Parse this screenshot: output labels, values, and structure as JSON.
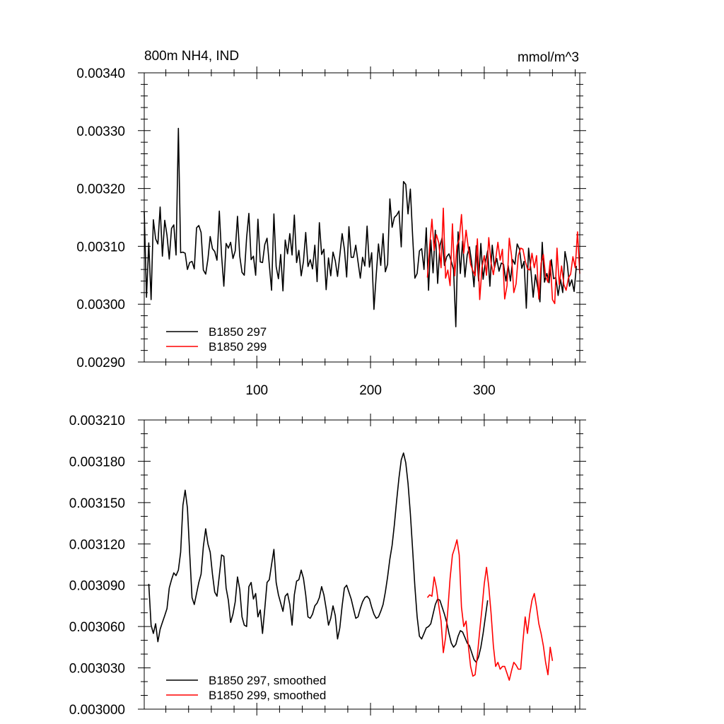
{
  "chart_data": [
    {
      "type": "line",
      "title_left": "800m NH4, IND",
      "title_right": "mmol/m^3",
      "xlim": [
        1,
        384
      ],
      "ylim": [
        0.0029,
        0.0034
      ],
      "x_ticks": [
        100,
        200,
        300
      ],
      "x_tick_labels": [
        "100",
        "200",
        "300"
      ],
      "y_ticks": [
        0.0029,
        0.003,
        0.0031,
        0.0032,
        0.0033,
        0.0034
      ],
      "y_tick_labels": [
        "0.00290",
        "0.00300",
        "0.00310",
        "0.00320",
        "0.00330",
        "0.00340"
      ],
      "legend_position": "bottom-left",
      "series": [
        {
          "name": "B1850 297",
          "color": "#000000",
          "x_start": 1,
          "x_step": 2,
          "values": [
            0.00316,
            0.003012,
            0.003106,
            0.003008,
            0.003146,
            0.003113,
            0.003104,
            0.003168,
            0.003083,
            0.003145,
            0.003119,
            0.003078,
            0.003131,
            0.003137,
            0.003085,
            0.003304,
            0.003089,
            0.00309,
            0.003088,
            0.00306,
            0.003072,
            0.003074,
            0.003061,
            0.003132,
            0.003136,
            0.003124,
            0.003059,
            0.003052,
            0.003078,
            0.003117,
            0.003096,
            0.003091,
            0.003076,
            0.003161,
            0.003084,
            0.003031,
            0.003105,
            0.003097,
            0.003107,
            0.003079,
            0.003092,
            0.003152,
            0.003083,
            0.003055,
            0.00305,
            0.003115,
            0.003157,
            0.003077,
            0.003083,
            0.00305,
            0.003147,
            0.003073,
            0.003072,
            0.003103,
            0.003114,
            0.003068,
            0.003024,
            0.003156,
            0.003065,
            0.003044,
            0.003086,
            0.003023,
            0.003111,
            0.003087,
            0.003122,
            0.003085,
            0.003154,
            0.003072,
            0.003093,
            0.003049,
            0.003074,
            0.003124,
            0.003065,
            0.003077,
            0.003061,
            0.003102,
            0.003039,
            0.003141,
            0.003086,
            0.003095,
            0.003025,
            0.00308,
            0.003049,
            0.00309,
            0.003075,
            0.003048,
            0.003084,
            0.003122,
            0.003095,
            0.003047,
            0.003134,
            0.003081,
            0.003081,
            0.003102,
            0.003073,
            0.003045,
            0.003081,
            0.003066,
            0.003135,
            0.003064,
            0.003089,
            0.002991,
            0.00305,
            0.003104,
            0.003067,
            0.003122,
            0.003056,
            0.003069,
            0.003182,
            0.003133,
            0.00315,
            0.003154,
            0.003161,
            0.003099,
            0.003212,
            0.003207,
            0.003156,
            0.003199,
            0.003118,
            0.003045,
            0.003053,
            0.003092,
            0.003096,
            0.00306,
            0.003132,
            0.003024,
            0.003111,
            0.003054,
            0.003128,
            0.003036,
            0.003101,
            0.003115,
            0.003067,
            0.003082,
            0.003087,
            0.003074,
            0.00306,
            0.002961,
            0.003125,
            0.003053,
            0.003109,
            0.003047,
            0.003085,
            0.003099,
            0.003071,
            0.00303,
            0.003101,
            0.00304,
            0.003105,
            0.003043,
            0.003073,
            0.003092,
            0.003031,
            0.003102,
            0.003063,
            0.003079,
            0.003057,
            0.003071,
            0.003069,
            0.00304,
            0.003067,
            0.00304,
            0.003077,
            0.003069,
            0.003104,
            0.003095,
            0.003062,
            0.003074,
            0.002993,
            0.003097,
            0.00306,
            0.003012,
            0.003051,
            0.003029,
            0.003004,
            0.003107,
            0.003038,
            0.003053,
            0.003037,
            0.003077,
            0.003044,
            0.003046,
            0.003015,
            0.003043,
            0.00302,
            0.003091,
            0.00307,
            0.003031,
            0.003042,
            0.003022,
            0.003066
          ]
        },
        {
          "name": "B1850 299",
          "color": "#ff0000",
          "x_start": 250,
          "x_step": 2,
          "values": [
            0.003046,
            0.003101,
            0.003147,
            0.003093,
            0.00312,
            0.003106,
            0.003063,
            0.003166,
            0.003045,
            0.003059,
            0.003032,
            0.003139,
            0.003049,
            0.003101,
            0.003112,
            0.003155,
            0.003088,
            0.003128,
            0.003097,
            0.003069,
            0.003058,
            0.003049,
            0.003113,
            0.003008,
            0.003063,
            0.003084,
            0.00305,
            0.003115,
            0.003072,
            0.003051,
            0.003077,
            0.003107,
            0.003076,
            0.003095,
            0.003009,
            0.003032,
            0.003114,
            0.003084,
            0.00302,
            0.003035,
            0.003084,
            0.003097,
            0.003095,
            0.003075,
            0.003061,
            0.003059,
            0.003088,
            0.003063,
            0.003084,
            0.003009,
            0.003071,
            0.003086,
            0.003048,
            0.003038,
            0.003075,
            0.003008,
            0.003001,
            0.003097,
            0.003034,
            0.003066,
            0.003034,
            0.003024,
            0.003045,
            0.003052,
            0.003082,
            0.003063,
            0.003125,
            0.003053,
            0.003055
          ]
        }
      ]
    },
    {
      "type": "line",
      "xlim": [
        1,
        384
      ],
      "ylim": [
        0.003,
        0.00321
      ],
      "y_ticks": [
        0.003,
        0.00303,
        0.00306,
        0.00309,
        0.00312,
        0.00315,
        0.00318,
        0.00321
      ],
      "y_tick_labels": [
        "0.003000",
        "0.003030",
        "0.003060",
        "0.003090",
        "0.003120",
        "0.003150",
        "0.003180",
        "0.003210"
      ],
      "legend_position": "bottom-left",
      "series": [
        {
          "name": "B1850 297, smoothed",
          "color": "#000000",
          "x_start": 5,
          "x_step": 2,
          "values": [
            0.003091,
            0.003061,
            0.003055,
            0.003062,
            0.003049,
            0.003058,
            0.003063,
            0.003068,
            0.003073,
            0.003088,
            0.003094,
            0.003099,
            0.003097,
            0.003101,
            0.003114,
            0.003148,
            0.003159,
            0.003146,
            0.003113,
            0.003081,
            0.003076,
            0.003084,
            0.003092,
            0.003098,
            0.003118,
            0.003131,
            0.00312,
            0.003114,
            0.003098,
            0.003085,
            0.003082,
            0.003097,
            0.003112,
            0.003111,
            0.003088,
            0.003079,
            0.003063,
            0.003069,
            0.003078,
            0.003096,
            0.003087,
            0.003067,
            0.003061,
            0.00306,
            0.003089,
            0.003092,
            0.00308,
            0.003084,
            0.003067,
            0.003072,
            0.003055,
            0.003073,
            0.003092,
            0.003094,
            0.003105,
            0.003116,
            0.003092,
            0.003083,
            0.003077,
            0.003071,
            0.003082,
            0.003084,
            0.003076,
            0.003061,
            0.003083,
            0.003093,
            0.003094,
            0.003101,
            0.003095,
            0.003083,
            0.003067,
            0.003066,
            0.003069,
            0.003075,
            0.003077,
            0.003081,
            0.003089,
            0.003083,
            0.003073,
            0.003061,
            0.003066,
            0.003075,
            0.003068,
            0.003051,
            0.003059,
            0.003075,
            0.003088,
            0.00309,
            0.003085,
            0.00308,
            0.003073,
            0.003066,
            0.003067,
            0.003073,
            0.003078,
            0.003081,
            0.003082,
            0.00308,
            0.003074,
            0.003069,
            0.003066,
            0.003067,
            0.003071,
            0.003076,
            0.003085,
            0.003096,
            0.003109,
            0.003119,
            0.003134,
            0.003152,
            0.003168,
            0.003181,
            0.003186,
            0.003179,
            0.003164,
            0.003142,
            0.003116,
            0.003089,
            0.003067,
            0.003053,
            0.003051,
            0.003055,
            0.003059,
            0.00306,
            0.003062,
            0.003069,
            0.003076,
            0.00308,
            0.003079,
            0.003074,
            0.003069,
            0.003063,
            0.003055,
            0.003048,
            0.003045,
            0.003047,
            0.003053,
            0.003057,
            0.003056,
            0.003052,
            0.003048,
            0.003046,
            0.003041,
            0.003036,
            0.003034,
            0.003038,
            0.003045,
            0.003055,
            0.003067,
            0.003079
          ]
        },
        {
          "name": "B1850 299, smoothed",
          "color": "#ff0000",
          "x_start": 250,
          "x_step": 2,
          "values": [
            0.003081,
            0.003083,
            0.003082,
            0.003096,
            0.003088,
            0.003075,
            0.003064,
            0.003041,
            0.003052,
            0.003072,
            0.003095,
            0.003112,
            0.003117,
            0.003123,
            0.003112,
            0.003074,
            0.00306,
            0.003064,
            0.003046,
            0.003031,
            0.003024,
            0.003025,
            0.003039,
            0.003057,
            0.003073,
            0.003091,
            0.003103,
            0.003089,
            0.00307,
            0.003046,
            0.003031,
            0.003034,
            0.003029,
            0.003031,
            0.003031,
            0.003026,
            0.003021,
            0.003028,
            0.003034,
            0.003032,
            0.003029,
            0.003029,
            0.003049,
            0.003067,
            0.003055,
            0.003069,
            0.003079,
            0.003084,
            0.003074,
            0.003062,
            0.003055,
            0.003046,
            0.003034,
            0.003025,
            0.003045,
            0.003035
          ]
        }
      ]
    }
  ]
}
